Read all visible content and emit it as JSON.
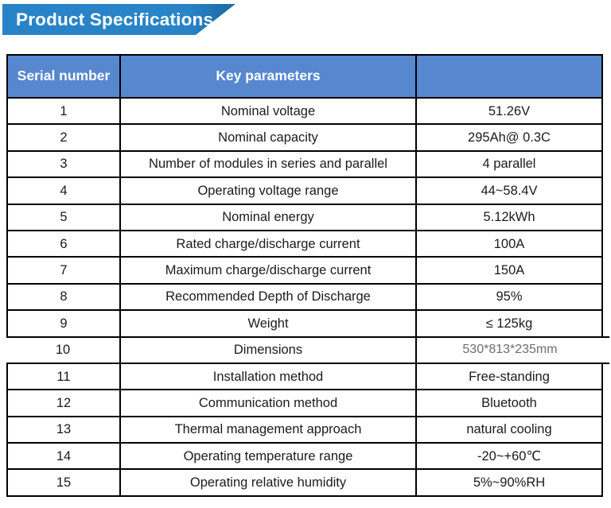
{
  "banner": {
    "title": "Product Specifications"
  },
  "colors": {
    "banner_blue": "#2984C7",
    "banner_tip": "#1E6EA8",
    "banner_text": "#FFFFFF",
    "header_blue": "#5787CF",
    "header_text": "#FFFFFF",
    "line": "#000000",
    "body_text": "#1B1B1B",
    "dim_text": "#6D6D6D"
  },
  "table": {
    "header": {
      "col1": "Serial number",
      "col2": "Key parameters",
      "col3": ""
    },
    "rows": [
      {
        "num": "1",
        "param": "Nominal voltage",
        "value": "51.26V"
      },
      {
        "num": "2",
        "param": "Nominal capacity",
        "value": "295Ah@ 0.3C"
      },
      {
        "num": "3",
        "param": "Number of modules in series and parallel",
        "value": "4 parallel"
      },
      {
        "num": "4",
        "param": "Operating voltage range",
        "value": "44~58.4V"
      },
      {
        "num": "5",
        "param": "Nominal energy",
        "value": "5.12kWh"
      },
      {
        "num": "6",
        "param": "Rated charge/discharge current",
        "value": "100A"
      },
      {
        "num": "7",
        "param": "Maximum charge/discharge current",
        "value": "150A"
      },
      {
        "num": "8",
        "param": "Recommended Depth of Discharge",
        "value": "95%"
      },
      {
        "num": "9",
        "param": "Weight",
        "value": "≤ 125kg"
      },
      {
        "num": "10",
        "param": "Dimensions",
        "value": "530*813*235mm",
        "patched": true
      },
      {
        "num": "11",
        "param": "Installation method",
        "value": "Free-standing"
      },
      {
        "num": "12",
        "param": "Communication method",
        "value": "Bluetooth"
      },
      {
        "num": "13",
        "param": "Thermal management approach",
        "value": "natural cooling"
      },
      {
        "num": "14",
        "param": "Operating temperature range",
        "value": "-20~+60℃"
      },
      {
        "num": "15",
        "param": "Operating relative humidity",
        "value": "5%~90%RH"
      }
    ]
  }
}
